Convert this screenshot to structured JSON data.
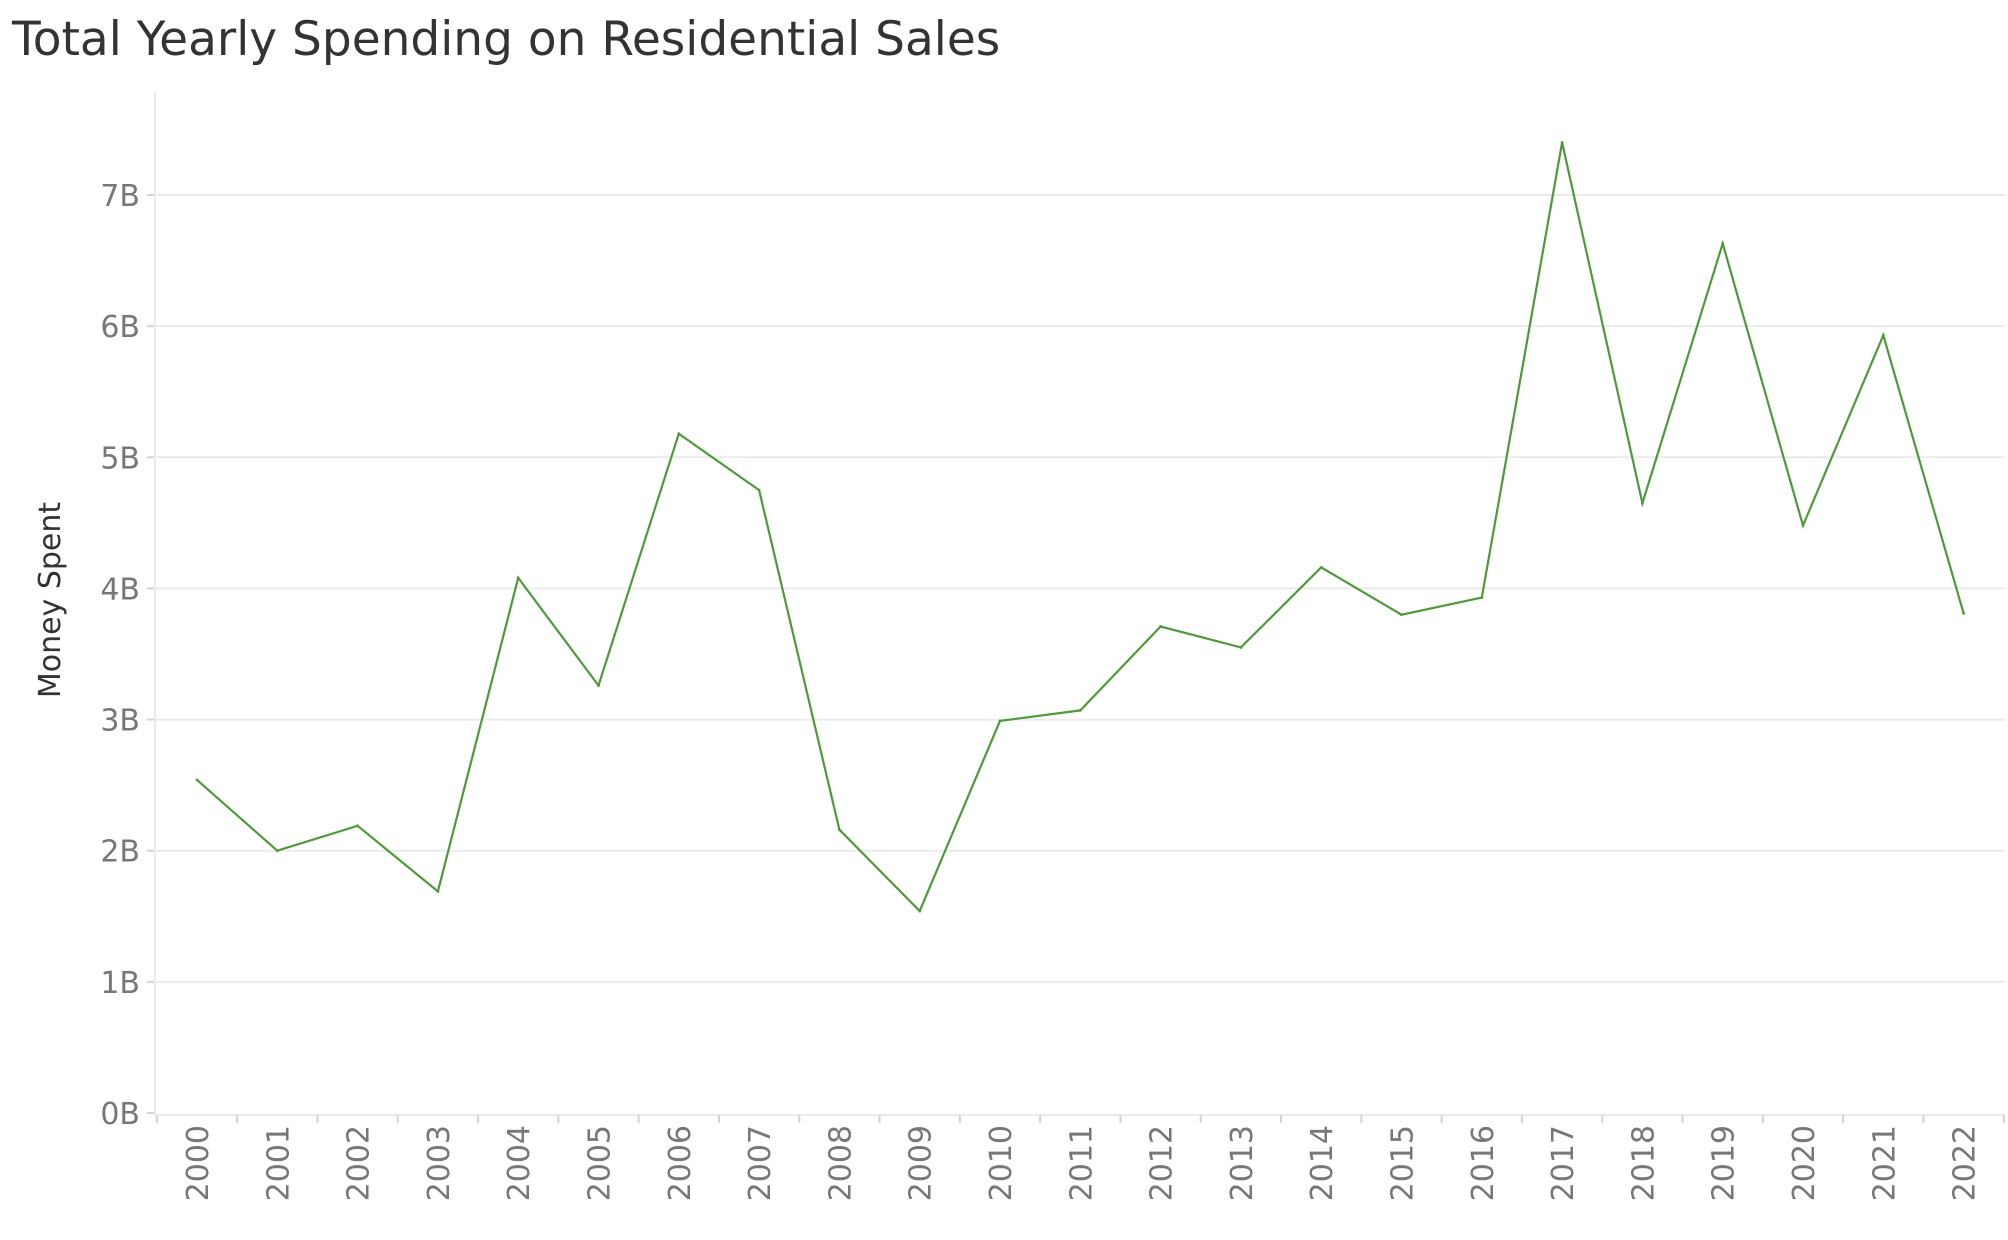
{
  "chart_data": {
    "type": "line",
    "title": "Total Yearly Spending on Residential Sales",
    "xlabel": "",
    "ylabel": "Money Spent",
    "ylim": [
      0,
      7800000000
    ],
    "y_ticks": [
      {
        "value": 0,
        "label": "0B"
      },
      {
        "value": 1000000000,
        "label": "1B"
      },
      {
        "value": 2000000000,
        "label": "2B"
      },
      {
        "value": 3000000000,
        "label": "3B"
      },
      {
        "value": 4000000000,
        "label": "4B"
      },
      {
        "value": 5000000000,
        "label": "5B"
      },
      {
        "value": 6000000000,
        "label": "6B"
      },
      {
        "value": 7000000000,
        "label": "7B"
      }
    ],
    "categories": [
      "2000",
      "2001",
      "2002",
      "2003",
      "2004",
      "2005",
      "2006",
      "2007",
      "2008",
      "2009",
      "2010",
      "2011",
      "2012",
      "2013",
      "2014",
      "2015",
      "2016",
      "2017",
      "2018",
      "2019",
      "2020",
      "2021",
      "2022"
    ],
    "series": [
      {
        "color": "#4e9a3a",
        "values": [
          2540000000,
          2000000000,
          2190000000,
          1690000000,
          4080000000,
          3260000000,
          5180000000,
          4750000000,
          2160000000,
          1540000000,
          2990000000,
          3070000000,
          3710000000,
          3550000000,
          4160000000,
          3800000000,
          3930000000,
          7400000000,
          4650000000,
          6630000000,
          4480000000,
          5930000000,
          3810000000
        ]
      }
    ],
    "grid": true,
    "legend": "none",
    "colors": {
      "line": "#4e9a3a",
      "grid": "#ebebeb",
      "tick_text": "#777777",
      "title_text": "#333333"
    }
  }
}
